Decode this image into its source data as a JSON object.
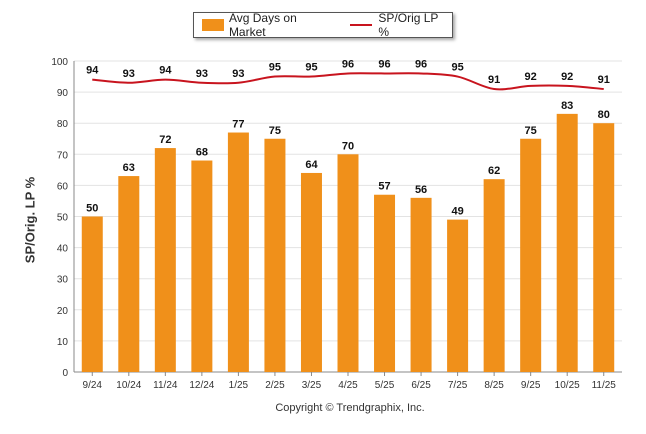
{
  "legend": {
    "bar_label": "Avg Days on Market",
    "line_label": "SP/Orig LP %"
  },
  "ylabel": "SP/Orig. LP %",
  "copyright": "Copyright © Trendgraphix, Inc.",
  "colors": {
    "bar": "#f0901a",
    "line": "#c8141e",
    "grid": "#e3e3e3",
    "axis": "#888888"
  },
  "chart_data": {
    "type": "bar",
    "categories": [
      "9/24",
      "10/24",
      "11/24",
      "12/24",
      "1/25",
      "2/25",
      "3/25",
      "4/25",
      "5/25",
      "6/25",
      "7/25",
      "8/25",
      "9/25",
      "10/25",
      "11/25"
    ],
    "series": [
      {
        "name": "Avg Days on Market",
        "type": "bar",
        "values": [
          50,
          63,
          72,
          68,
          77,
          75,
          64,
          70,
          57,
          56,
          49,
          62,
          75,
          83,
          80
        ]
      },
      {
        "name": "SP/Orig LP %",
        "type": "line",
        "values": [
          94,
          93,
          94,
          93,
          93,
          95,
          95,
          96,
          96,
          96,
          95,
          91,
          92,
          92,
          91
        ]
      }
    ],
    "ylabel": "SP/Orig. LP %",
    "ylim": [
      0,
      100
    ],
    "yticks": [
      0,
      10,
      20,
      30,
      40,
      50,
      60,
      70,
      80,
      90,
      100
    ],
    "grid": true,
    "legend_position": "top-center"
  }
}
